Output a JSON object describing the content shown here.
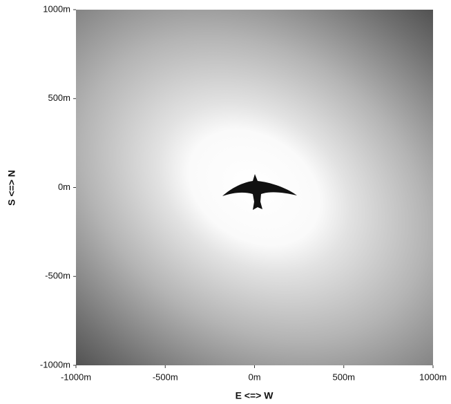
{
  "chart_data": {
    "type": "density",
    "xlabel": "E <=> W",
    "ylabel": "S <=> N",
    "xlim": [
      -1000,
      1000
    ],
    "ylim": [
      -1000,
      1000
    ],
    "xticks": [
      {
        "value": -1000,
        "label": "-1000m"
      },
      {
        "value": -500,
        "label": "-500m"
      },
      {
        "value": 0,
        "label": "0m"
      },
      {
        "value": 500,
        "label": "500m"
      },
      {
        "value": 1000,
        "label": "1000m"
      }
    ],
    "yticks": [
      {
        "value": -1000,
        "label": "-1000m"
      },
      {
        "value": -500,
        "label": "-500m"
      },
      {
        "value": 0,
        "label": "0m"
      },
      {
        "value": 500,
        "label": "500m"
      },
      {
        "value": 1000,
        "label": "1000m"
      }
    ]
  }
}
